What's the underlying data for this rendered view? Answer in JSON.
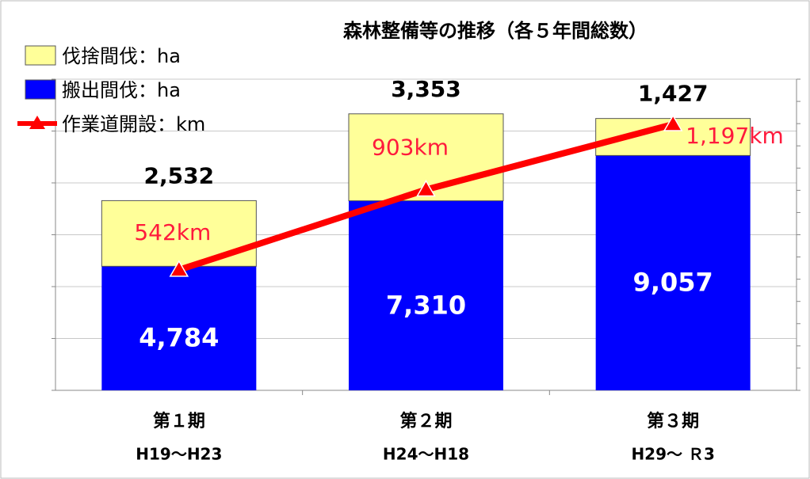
{
  "chart_data": {
    "type": "bar",
    "title": "森林整備等の推移（各５年間総数）",
    "categories": [
      [
        "第１期",
        "H19～H23"
      ],
      [
        "第２期",
        "H24～H18"
      ],
      [
        "第３期",
        "H29～ Ｒ3"
      ]
    ],
    "series": [
      {
        "name": "搬出間伐：ha",
        "color": "#0000ff",
        "values": [
          4784,
          7310,
          9057
        ],
        "value_labels": [
          "4,784",
          "7,310",
          "9,057"
        ]
      },
      {
        "name": "伐捨間伐：ha",
        "color": "#ffff99",
        "values": [
          2532,
          3353,
          1427
        ],
        "value_labels": [
          "2,532",
          "3,353",
          "1,427"
        ]
      },
      {
        "name": "作業道開設：km",
        "type": "line",
        "axis": "y2",
        "color": "#ff0000",
        "values": [
          542,
          903,
          1197
        ],
        "value_labels": [
          "542km",
          "903km",
          "1,197km"
        ]
      }
    ],
    "ylim": [
      0,
      12000
    ],
    "yticks": [
      0,
      2000,
      4000,
      6000,
      8000,
      10000,
      12000
    ],
    "y2lim": [
      0,
      1400
    ],
    "y2ticks": [
      0,
      100,
      200,
      300,
      400,
      500,
      600,
      700,
      800,
      900,
      1000,
      1100,
      1200,
      1300,
      1400
    ],
    "grid": true
  }
}
